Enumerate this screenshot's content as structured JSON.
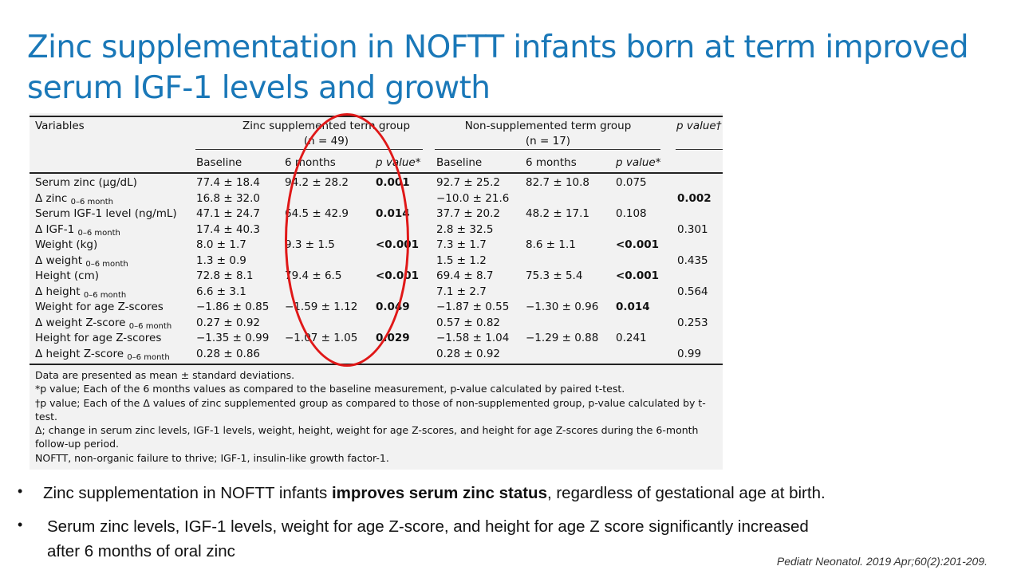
{
  "title": "Zinc supplementation in NOFTT infants born at term improved serum IGF-1 levels and growth",
  "table": {
    "header": {
      "variables": "Variables",
      "zinc_group": "Zinc supplemented term group",
      "zinc_n": "(n = 49)",
      "non_group": "Non-supplemented term group",
      "non_n": "(n = 17)",
      "p_value": "p value†",
      "baseline": "Baseline",
      "six_months": "6 months",
      "p_value_star": "p value*"
    },
    "rows": [
      {
        "label": "Serum zinc (μg/dL)",
        "sub": "",
        "z_base": "77.4 ± 18.4",
        "z_6m": "94.2 ± 28.2",
        "z_p": "0.001",
        "n_base": "92.7 ± 25.2",
        "n_6m": "82.7 ± 10.8",
        "n_p": "0.075",
        "p": ""
      },
      {
        "label": "Δ zinc",
        "sub": "0–6 month",
        "z_base": "16.8 ± 32.0",
        "z_6m": "",
        "z_p": "",
        "n_base": "−10.0 ± 21.6",
        "n_6m": "",
        "n_p": "",
        "p": "0.002"
      },
      {
        "label": "Serum IGF-1 level (ng/mL)",
        "sub": "",
        "z_base": "47.1 ± 24.7",
        "z_6m": "64.5 ± 42.9",
        "z_p": "0.014",
        "n_base": "37.7 ± 20.2",
        "n_6m": "48.2 ± 17.1",
        "n_p": "0.108",
        "p": ""
      },
      {
        "label": "Δ IGF-1",
        "sub": "0–6 month",
        "z_base": "17.4 ± 40.3",
        "z_6m": "",
        "z_p": "",
        "n_base": "2.8 ± 32.5",
        "n_6m": "",
        "n_p": "",
        "p": "0.301"
      },
      {
        "label": "Weight (kg)",
        "sub": "",
        "z_base": "8.0 ± 1.7",
        "z_6m": "9.3 ± 1.5",
        "z_p": "<0.001",
        "n_base": "7.3 ± 1.7",
        "n_6m": "8.6 ± 1.1",
        "n_p": "<0.001",
        "p": ""
      },
      {
        "label": "Δ weight",
        "sub": "0–6 month",
        "z_base": "1.3 ± 0.9",
        "z_6m": "",
        "z_p": "",
        "n_base": "1.5 ± 1.2",
        "n_6m": "",
        "n_p": "",
        "p": "0.435"
      },
      {
        "label": "Height (cm)",
        "sub": "",
        "z_base": "72.8 ± 8.1",
        "z_6m": "79.4 ± 6.5",
        "z_p": "<0.001",
        "n_base": "69.4 ± 8.7",
        "n_6m": "75.3 ± 5.4",
        "n_p": "<0.001",
        "p": ""
      },
      {
        "label": "Δ height",
        "sub": "0–6 month",
        "z_base": "6.6 ± 3.1",
        "z_6m": "",
        "z_p": "",
        "n_base": "7.1 ± 2.7",
        "n_6m": "",
        "n_p": "",
        "p": "0.564"
      },
      {
        "label": "Weight for age Z-scores",
        "sub": "",
        "z_base": "−1.86 ± 0.85",
        "z_6m": "−1.59 ± 1.12",
        "z_p": "0.049",
        "n_base": "−1.87 ± 0.55",
        "n_6m": "−1.30 ± 0.96",
        "n_p": "0.014",
        "p": ""
      },
      {
        "label": "Δ weight Z-score",
        "sub": "0–6 month",
        "z_base": "0.27 ± 0.92",
        "z_6m": "",
        "z_p": "",
        "n_base": "0.57 ± 0.82",
        "n_6m": "",
        "n_p": "",
        "p": "0.253"
      },
      {
        "label": "Height for age Z-scores",
        "sub": "",
        "z_base": "−1.35 ± 0.99",
        "z_6m": "−1.07 ± 1.05",
        "z_p": "0.029",
        "n_base": "−1.58 ± 1.04",
        "n_6m": "−1.29 ± 0.88",
        "n_p": "0.241",
        "p": ""
      },
      {
        "label": "Δ height Z-score",
        "sub": "0–6 month",
        "z_base": "0.28 ± 0.86",
        "z_6m": "",
        "z_p": "",
        "n_base": "0.28 ± 0.92",
        "n_6m": "",
        "n_p": "",
        "p": "0.99"
      }
    ],
    "notes": [
      "Data are presented as mean ± standard deviations.",
      "*p value; Each of the 6 months values as compared to the baseline measurement, p-value calculated by paired t-test.",
      "†p value; Each of the Δ values of zinc supplemented group as compared to those of non-supplemented group, p-value calculated by t-test.",
      "Δ; change in serum zinc levels, IGF-1 levels, weight, height, weight for age Z-scores, and height for age Z-scores during the 6-month follow-up period.",
      "NOFTT, non-organic failure to thrive; IGF-1, insulin-like growth factor-1."
    ]
  },
  "bullets": {
    "b1_pre": "Zinc supplementation in NOFTT infants ",
    "b1_bold": "improves serum zinc status",
    "b1_post": ", regardless of gestational age at birth.",
    "b2_line1": "Serum zinc levels, IGF-1 levels, weight for age Z-score, and height for age Z score significantly increased",
    "b2_line2": "after 6 months of oral zinc",
    "bullet_char": "•"
  },
  "citation": "Pediatr Neonatol. 2019 Apr;60(2):201-209.",
  "colors": {
    "title": "#1a78b8",
    "highlight_circle": "#e01818",
    "table_bg": "#f2f2f2"
  }
}
